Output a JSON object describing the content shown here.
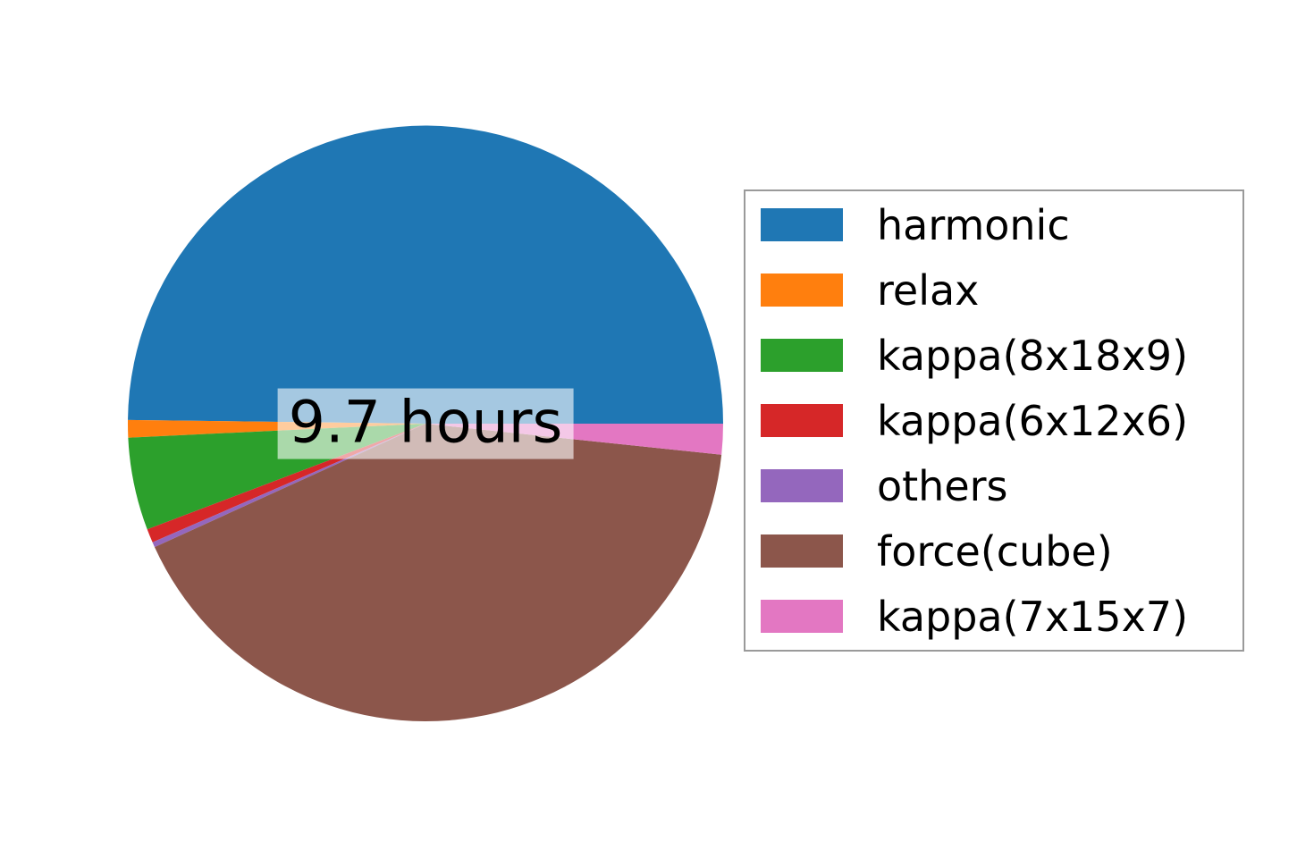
{
  "figure": {
    "background_color": "#ffffff",
    "legend_border_color": "#9a9a9a",
    "center_label_bg": "rgba(255,255,255,0.6)"
  },
  "chart_data": {
    "type": "pie",
    "title": "",
    "center_label": "9.7 hours",
    "total_hours": 9.7,
    "unit": "hours",
    "start_angle_deg": 0,
    "direction": "counterclockwise",
    "legend_position": "right",
    "slices": [
      {
        "label": "harmonic",
        "color": "#1f77b4",
        "angle_deg": 179.3,
        "percent": 49.8,
        "hours": 4.83
      },
      {
        "label": "relax",
        "color": "#ff7f0e",
        "angle_deg": 3.4,
        "percent": 0.9,
        "hours": 0.09
      },
      {
        "label": "kappa(8x18x9)",
        "color": "#2ca02c",
        "angle_deg": 18.1,
        "percent": 5.0,
        "hours": 0.49
      },
      {
        "label": "kappa(6x12x6)",
        "color": "#d62728",
        "angle_deg": 2.7,
        "percent": 0.8,
        "hours": 0.07
      },
      {
        "label": "others",
        "color": "#9467bd",
        "angle_deg": 1.0,
        "percent": 0.3,
        "hours": 0.03
      },
      {
        "label": "force(cube)",
        "color": "#8c564b",
        "angle_deg": 149.5,
        "percent": 41.5,
        "hours": 4.03
      },
      {
        "label": "kappa(7x15x7)",
        "color": "#e377c2",
        "angle_deg": 6.0,
        "percent": 1.7,
        "hours": 0.16
      }
    ]
  }
}
